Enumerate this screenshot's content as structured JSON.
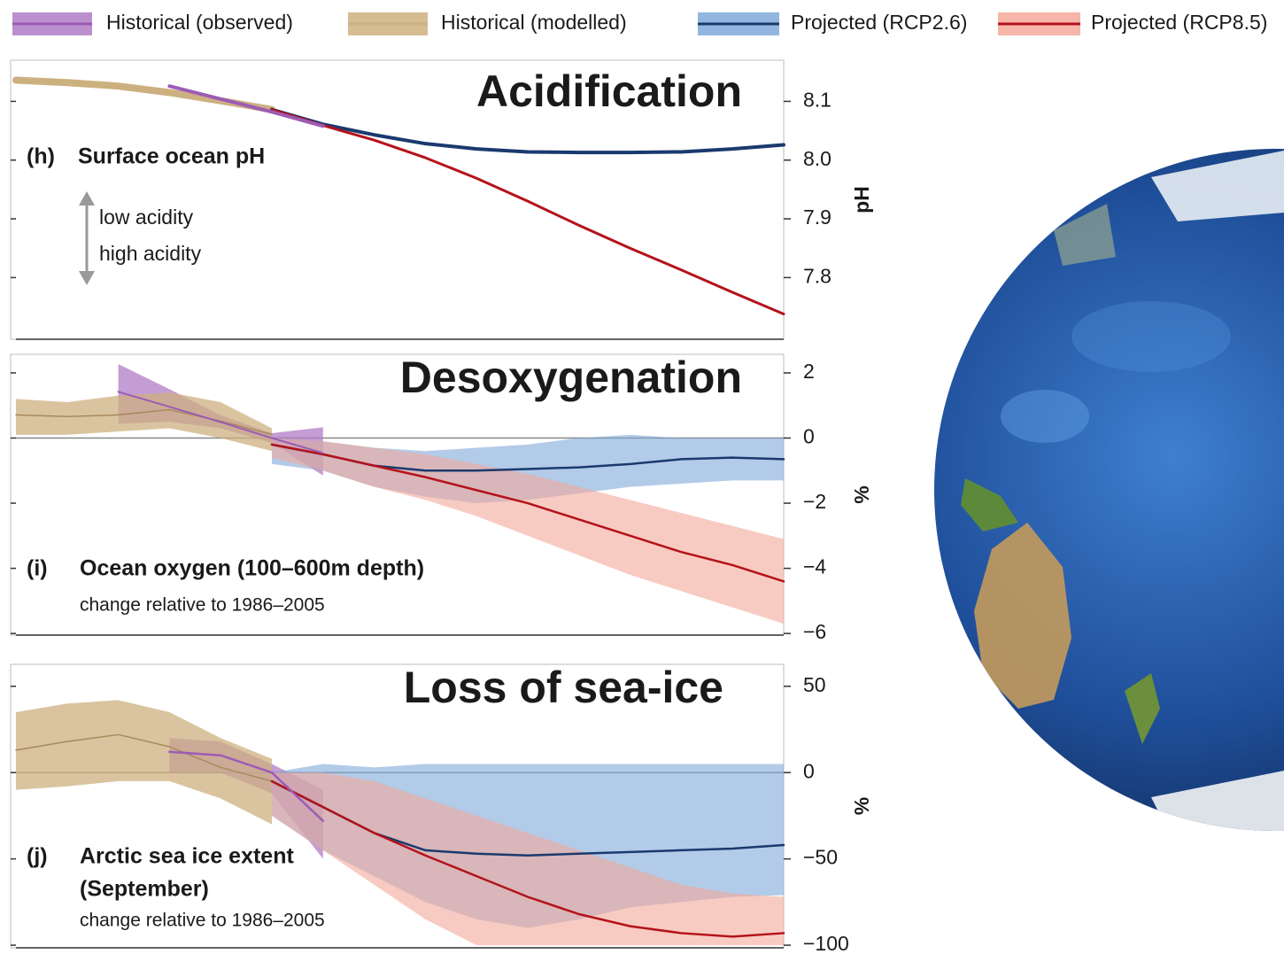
{
  "chart_data": [
    {
      "type": "line",
      "title": "Acidification",
      "panel": "(h)",
      "subtitle": [
        "Surface ocean pH"
      ],
      "annotations": [
        "low acidity",
        "high acidity"
      ],
      "y_label": "pH",
      "categories": [
        null,
        null,
        null,
        null,
        null,
        null,
        null,
        null,
        null,
        null,
        null,
        null,
        null,
        null,
        null,
        null
      ],
      "ylim": [
        7.695,
        8.17
      ],
      "yticks": [
        8.1,
        {
          "value": 8,
          "label": "8.0"
        },
        7.9,
        7.8
      ],
      "series": [
        {
          "name": "Historical (observed)",
          "color": "#9d5bb5",
          "band_color": "#b07cc6",
          "width": 4,
          "values": [
            null,
            null,
            null,
            8.126,
            8.104,
            8.082,
            8.058,
            null,
            null,
            null,
            null,
            null,
            null,
            null,
            null,
            null
          ]
        },
        {
          "name": "Historical (modelled)",
          "color": "#cdb080",
          "band_color": "#cdb080",
          "width": 8,
          "values": [
            8.136,
            8.132,
            8.126,
            8.115,
            8.101,
            8.086,
            null,
            null,
            null,
            null,
            null,
            null,
            null,
            null,
            null,
            null
          ]
        },
        {
          "name": "Projected (RCP2.6)",
          "color": "#1a3a6e",
          "band_color": "#7fa9d9",
          "width": 4,
          "values": [
            null,
            null,
            null,
            null,
            null,
            8.086,
            8.061,
            8.043,
            8.028,
            8.019,
            8.014,
            8.013,
            8.013,
            8.014,
            8.019,
            8.026
          ]
        },
        {
          "name": "Projected (RCP8.5)",
          "color": "#b5121b",
          "band_color": "#f4a99a",
          "width": 3,
          "values": [
            null,
            null,
            null,
            null,
            null,
            8.086,
            8.059,
            8.034,
            8.004,
            7.969,
            7.93,
            7.889,
            7.85,
            7.813,
            7.775,
            7.738
          ]
        }
      ]
    },
    {
      "type": "line",
      "title": "Desoxygenation",
      "panel": "(i)",
      "subtitle": [
        "Ocean oxygen (100–600m depth)"
      ],
      "note": "change relative to 1986–2005",
      "y_label": "%",
      "zero_line": true,
      "categories": [
        null,
        null,
        null,
        null,
        null,
        null,
        null,
        null,
        null,
        null,
        null,
        null,
        null,
        null,
        null,
        null
      ],
      "ylim": [
        -6.05,
        2.57
      ],
      "yticks": [
        2,
        0,
        {
          "value": -2,
          "label": "−2"
        },
        {
          "value": -4,
          "label": "−4"
        },
        {
          "value": -6,
          "label": "−6"
        }
      ],
      "series": [
        {
          "name": "Historical (observed)",
          "color": "#9d5bb5",
          "band_color": "#b07cc6",
          "width": 2,
          "values": [
            null,
            null,
            1.42,
            0.96,
            0.49,
            0,
            -0.46,
            null,
            null,
            null,
            null,
            null,
            null,
            null,
            null,
            null
          ],
          "upper": [
            null,
            null,
            2.27,
            1.5,
            0.7,
            0.15,
            0.33,
            null,
            null,
            null,
            null,
            null,
            null,
            null,
            null,
            null
          ],
          "lower": [
            null,
            null,
            0.44,
            0.5,
            0.3,
            -0.15,
            -1.15,
            null,
            null,
            null,
            null,
            null,
            null,
            null,
            null,
            null
          ]
        },
        {
          "name": "Historical (modelled)",
          "color": "#a8895c",
          "band_color": "#cdb080",
          "width": 1.5,
          "values": [
            0.71,
            0.66,
            0.71,
            0.87,
            0.52,
            0.11,
            null,
            null,
            null,
            null,
            null,
            null,
            null,
            null,
            null,
            null
          ],
          "upper": [
            1.2,
            1.1,
            1.3,
            1.4,
            1.1,
            0.3,
            null,
            null,
            null,
            null,
            null,
            null,
            null,
            null,
            null,
            null
          ],
          "lower": [
            0.1,
            0.1,
            0.2,
            0.3,
            0,
            -0.4,
            null,
            null,
            null,
            null,
            null,
            null,
            null,
            null,
            null,
            null
          ]
        },
        {
          "name": "Projected (RCP2.6)",
          "color": "#1a3a6e",
          "band_color": "#7fa9d9",
          "width": 2.5,
          "values": [
            null,
            null,
            null,
            null,
            null,
            -0.2,
            -0.5,
            -0.85,
            -1,
            -1,
            -0.95,
            -0.9,
            -0.8,
            -0.65,
            -0.6,
            -0.65
          ],
          "upper": [
            null,
            null,
            null,
            null,
            null,
            0,
            -0.1,
            -0.3,
            -0.4,
            -0.3,
            -0.2,
            0,
            0.1,
            0,
            0,
            0
          ],
          "lower": [
            null,
            null,
            null,
            null,
            null,
            -0.8,
            -1,
            -1.5,
            -1.8,
            -2,
            -1.9,
            -1.7,
            -1.5,
            -1.4,
            -1.3,
            -1.3
          ]
        },
        {
          "name": "Projected (RCP8.5)",
          "color": "#b5121b",
          "band_color": "#f4a99a",
          "width": 2.5,
          "values": [
            null,
            null,
            null,
            null,
            null,
            -0.2,
            -0.5,
            -0.85,
            -1.2,
            -1.6,
            -2,
            -2.5,
            -3,
            -3.5,
            -3.9,
            -4.4
          ],
          "upper": [
            null,
            null,
            null,
            null,
            null,
            0,
            -0.1,
            -0.3,
            -0.5,
            -0.8,
            -1.1,
            -1.5,
            -1.9,
            -2.3,
            -2.7,
            -3.1
          ],
          "lower": [
            null,
            null,
            null,
            null,
            null,
            -0.6,
            -1,
            -1.5,
            -1.9,
            -2.4,
            -3,
            -3.6,
            -4.2,
            -4.7,
            -5.2,
            -5.7
          ]
        }
      ]
    },
    {
      "type": "line",
      "title": "Loss of sea-ice",
      "panel": "(j)",
      "subtitle": [
        "Arctic sea ice extent",
        "(September)"
      ],
      "note": "change relative to 1986–2005",
      "y_label": "%",
      "zero_line": true,
      "categories": [
        null,
        null,
        null,
        null,
        null,
        null,
        null,
        null,
        null,
        null,
        null,
        null,
        null,
        null,
        null,
        null
      ],
      "ylim": [
        -101.5,
        62.7
      ],
      "yticks": [
        50,
        0,
        {
          "value": -50,
          "label": "−50"
        },
        {
          "value": -100,
          "label": "−100"
        }
      ],
      "series": [
        {
          "name": "Historical (observed)",
          "color": "#9d5bb5",
          "band_color": "#b07cc6",
          "width": 2.5,
          "values": [
            null,
            null,
            null,
            12,
            10,
            0,
            -28,
            null,
            null,
            null,
            null,
            null,
            null,
            null,
            null,
            null
          ],
          "upper": [
            null,
            null,
            null,
            20,
            18,
            5,
            -10,
            null,
            null,
            null,
            null,
            null,
            null,
            null,
            null,
            null
          ],
          "lower": [
            null,
            null,
            null,
            0,
            0,
            -12,
            -50,
            null,
            null,
            null,
            null,
            null,
            null,
            null,
            null,
            null
          ]
        },
        {
          "name": "Historical (modelled)",
          "color": "#a8895c",
          "band_color": "#cdb080",
          "width": 1.5,
          "values": [
            13,
            18,
            22,
            15,
            3,
            -5,
            null,
            null,
            null,
            null,
            null,
            null,
            null,
            null,
            null,
            null
          ],
          "upper": [
            35,
            40,
            42,
            35,
            20,
            8,
            null,
            null,
            null,
            null,
            null,
            null,
            null,
            null,
            null,
            null
          ],
          "lower": [
            -10,
            -8,
            -5,
            -5,
            -15,
            -30,
            null,
            null,
            null,
            null,
            null,
            null,
            null,
            null,
            null,
            null
          ]
        },
        {
          "name": "Projected (RCP2.6)",
          "color": "#1a3a6e",
          "band_color": "#7fa9d9",
          "width": 2.5,
          "values": [
            null,
            null,
            null,
            null,
            null,
            -5,
            -20,
            -35,
            -45,
            -47,
            -48,
            -47,
            -46,
            -45,
            -44,
            -42
          ],
          "upper": [
            null,
            null,
            null,
            null,
            null,
            0,
            5,
            3,
            5,
            5,
            5,
            5,
            5,
            5,
            5,
            5
          ],
          "lower": [
            null,
            null,
            null,
            null,
            null,
            -25,
            -45,
            -60,
            -75,
            -85,
            -90,
            -85,
            -78,
            -75,
            -72,
            -71
          ]
        },
        {
          "name": "Projected (RCP8.5)",
          "color": "#b5121b",
          "band_color": "#f4a99a",
          "width": 2.5,
          "values": [
            null,
            null,
            null,
            null,
            null,
            -5,
            -20,
            -35,
            -48,
            -60,
            -72,
            -82,
            -89,
            -93,
            -95,
            -93
          ],
          "upper": [
            null,
            null,
            null,
            null,
            null,
            0,
            0,
            -5,
            -15,
            -25,
            -35,
            -45,
            -55,
            -65,
            -70,
            -72
          ],
          "lower": [
            null,
            null,
            null,
            null,
            null,
            -25,
            -45,
            -65,
            -85,
            -100,
            -100,
            -100,
            -100,
            -100,
            -100,
            -100
          ]
        }
      ]
    }
  ]
}
